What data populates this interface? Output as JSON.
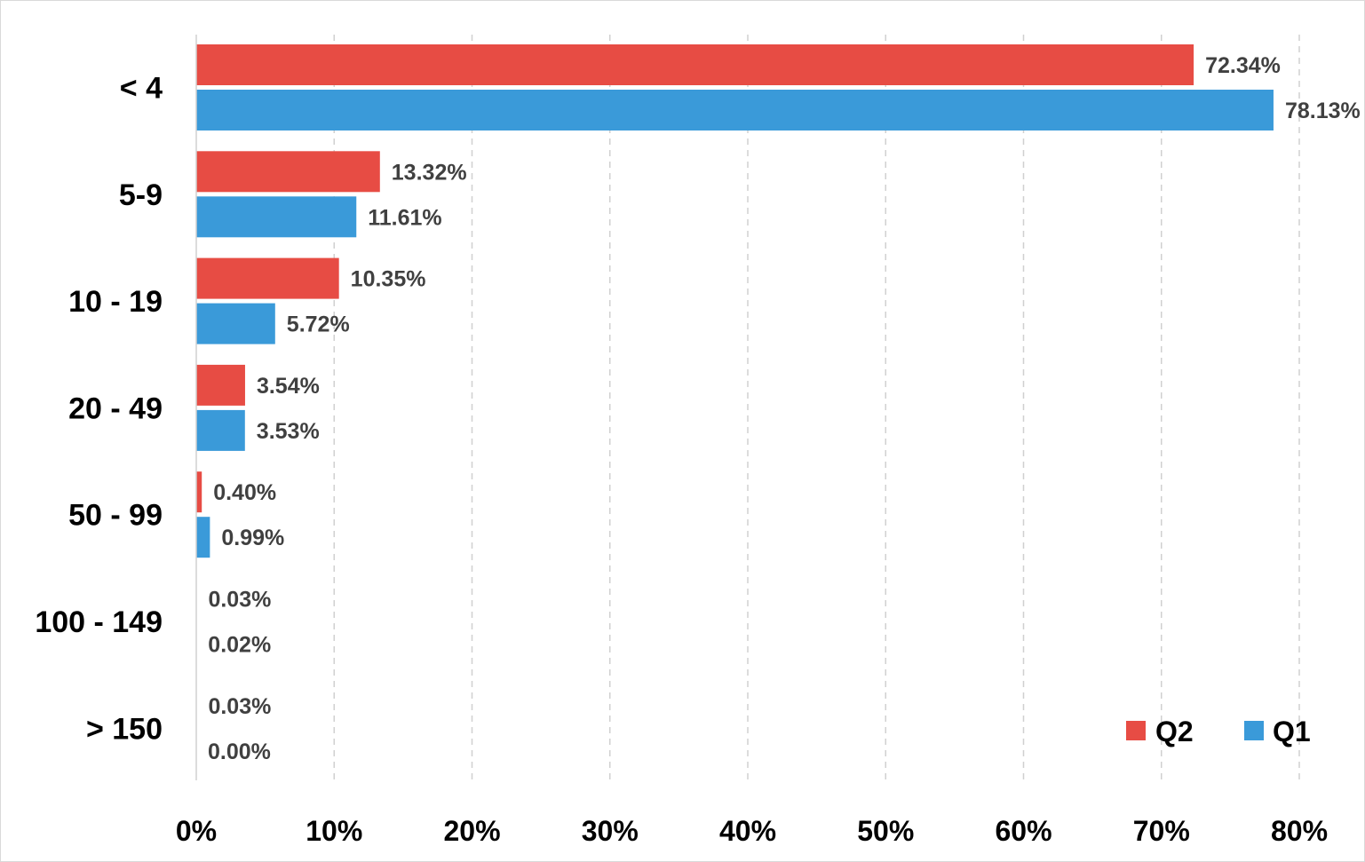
{
  "chart_data": {
    "type": "bar",
    "orientation": "horizontal",
    "title": "",
    "xlabel": "",
    "ylabel": "",
    "categories": [
      "< 4",
      "5-9",
      "10 - 19",
      "20 - 49",
      "50 - 99",
      "100 - 149",
      "> 150"
    ],
    "series": [
      {
        "name": "Q2",
        "color": "#e74c44",
        "values": [
          72.34,
          13.32,
          10.35,
          3.54,
          0.4,
          0.03,
          0.03
        ],
        "labels": [
          "72.34%",
          "13.32%",
          "10.35%",
          "3.54%",
          "0.40%",
          "0.03%",
          "0.03%"
        ]
      },
      {
        "name": "Q1",
        "color": "#3a9ad9",
        "values": [
          78.13,
          11.61,
          5.72,
          3.53,
          0.99,
          0.02,
          0.0
        ],
        "labels": [
          "78.13%",
          "11.61%",
          "5.72%",
          "3.53%",
          "0.99%",
          "0.02%",
          "0.00%"
        ]
      }
    ],
    "xlim": [
      0,
      80
    ],
    "xticks": [
      0,
      10,
      20,
      30,
      40,
      50,
      60,
      70,
      80
    ],
    "xtick_labels": [
      "0%",
      "10%",
      "20%",
      "30%",
      "40%",
      "50%",
      "60%",
      "70%",
      "80%"
    ],
    "grid": "vertical-dashed",
    "legend": {
      "position": "bottom-right",
      "entries": [
        "Q2",
        "Q1"
      ]
    }
  }
}
